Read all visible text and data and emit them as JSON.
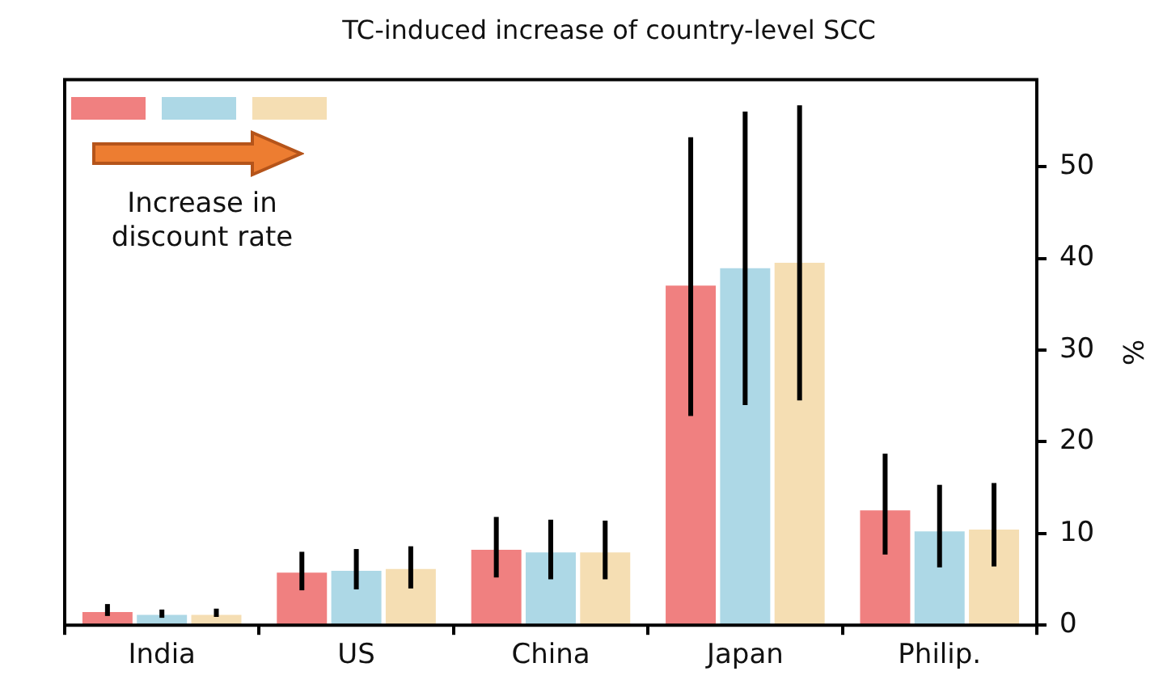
{
  "chart_data": {
    "type": "bar",
    "title": "TC-induced increase of country-level SCC",
    "ylabel": "%",
    "categories": [
      "India",
      "US",
      "China",
      "Japan",
      "Philip."
    ],
    "series": [
      {
        "color": "#f08080",
        "values": [
          1.6,
          5.9,
          8.4,
          37.2,
          12.7
        ],
        "errors": [
          [
            1.0,
            2.3
          ],
          [
            3.8,
            8.0
          ],
          [
            5.2,
            11.8
          ],
          [
            22.8,
            53.2
          ],
          [
            7.7,
            18.7
          ]
        ]
      },
      {
        "color": "#add8e6",
        "values": [
          1.3,
          6.1,
          8.1,
          39.1,
          10.4
        ],
        "errors": [
          [
            0.8,
            1.7
          ],
          [
            3.9,
            8.3
          ],
          [
            5.0,
            11.5
          ],
          [
            24.0,
            56.0
          ],
          [
            6.3,
            15.3
          ]
        ]
      },
      {
        "color": "#f5deb3",
        "values": [
          1.3,
          6.3,
          8.1,
          39.7,
          10.6
        ],
        "errors": [
          [
            0.9,
            1.8
          ],
          [
            4.0,
            8.6
          ],
          [
            5.0,
            11.4
          ],
          [
            24.5,
            56.7
          ],
          [
            6.4,
            15.5
          ]
        ]
      }
    ],
    "ylim": [
      0,
      59.5
    ],
    "yticks": [
      0,
      10,
      20,
      30,
      40,
      50
    ],
    "grid": false,
    "legend": false,
    "annotations": [
      "Increase in discount rate"
    ]
  }
}
